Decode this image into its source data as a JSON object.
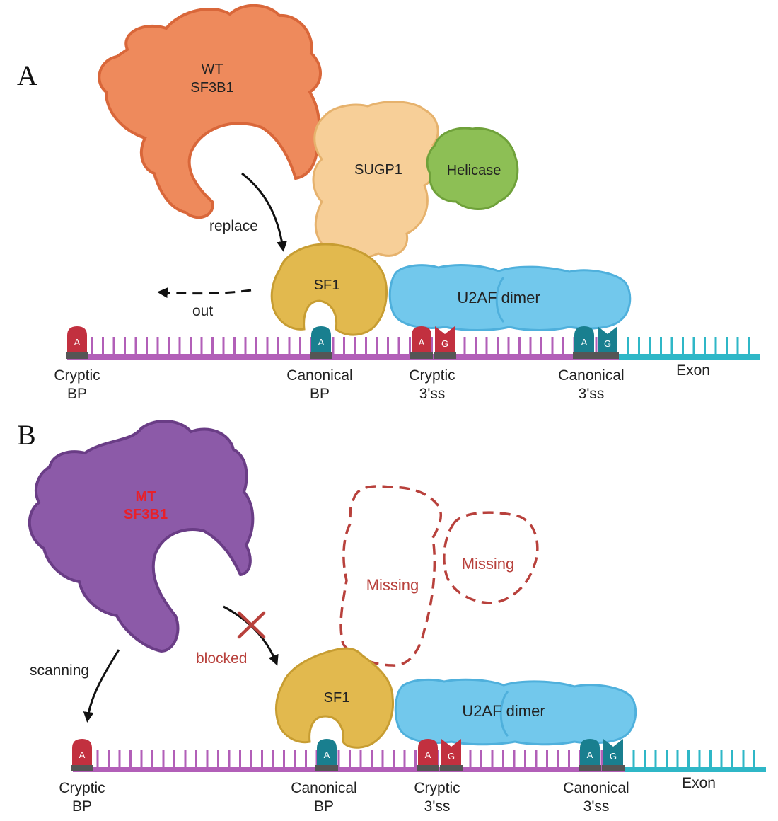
{
  "panel_a": {
    "letter": "A",
    "wt_line1": "WT",
    "wt_line2": "SF3B1",
    "sugp1": "SUGP1",
    "helicase": "Helicase",
    "sf1": "SF1",
    "u2af": "U2AF dimer",
    "replace": "replace",
    "out": "out",
    "sites": {
      "cryptic_bp": [
        "Cryptic",
        "BP"
      ],
      "canonical_bp": [
        "Canonical",
        "BP"
      ],
      "cryptic_3ss": [
        "Cryptic",
        "3'ss"
      ],
      "canonical_3ss": [
        "Canonical",
        "3'ss"
      ],
      "exon": "Exon"
    }
  },
  "panel_b": {
    "letter": "B",
    "mt_line1": "MT",
    "mt_line2": "SF3B1",
    "missing_1": "Missing",
    "missing_2": "Missing",
    "sf1": "SF1",
    "u2af": "U2AF dimer",
    "scanning": "scanning",
    "blocked": "blocked",
    "sites": {
      "cryptic_bp": [
        "Cryptic",
        "BP"
      ],
      "canonical_bp": [
        "Canonical",
        "BP"
      ],
      "cryptic_3ss": [
        "Cryptic",
        "3'ss"
      ],
      "canonical_3ss": [
        "Canonical",
        "3'ss"
      ],
      "exon": "Exon"
    }
  },
  "nucleotides": {
    "adenine": "A",
    "guanine": "G"
  },
  "colors": {
    "wt_sf3b1": "#ee8a5c",
    "mt_sf3b1": "#8c5aa8",
    "sugp1": "#f7cf98",
    "helicase": "#8dbf55",
    "sf1": "#e2b94e",
    "u2af": "#72c8ec",
    "intron": "#b25fb8",
    "exon": "#2fb7c7",
    "cryptic_site": "#c2303f",
    "canonical_site": "#197f8f",
    "missing": "#b8413c"
  }
}
